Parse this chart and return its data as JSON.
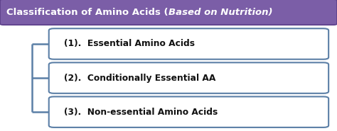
{
  "title_bold": "Classification of Amino Acids (",
  "title_italic": "Based on Nutrition)",
  "title_bg": "#7B5EA7",
  "title_text_color": "#FFFFFF",
  "box_border_color": "#5B7FA6",
  "box_bg_color": "#FFFFFF",
  "box_text_color": "#111111",
  "line_color": "#5B7FA6",
  "bg_color": "#FFFFFF",
  "items": [
    "(1).  Essential Amino Acids",
    "(2).  Conditionally Essential AA",
    "(3).  Non-essential Amino Acids"
  ],
  "fig_bg": "#FFFFFF",
  "figw": 4.74,
  "figh": 1.85,
  "dpi": 100
}
